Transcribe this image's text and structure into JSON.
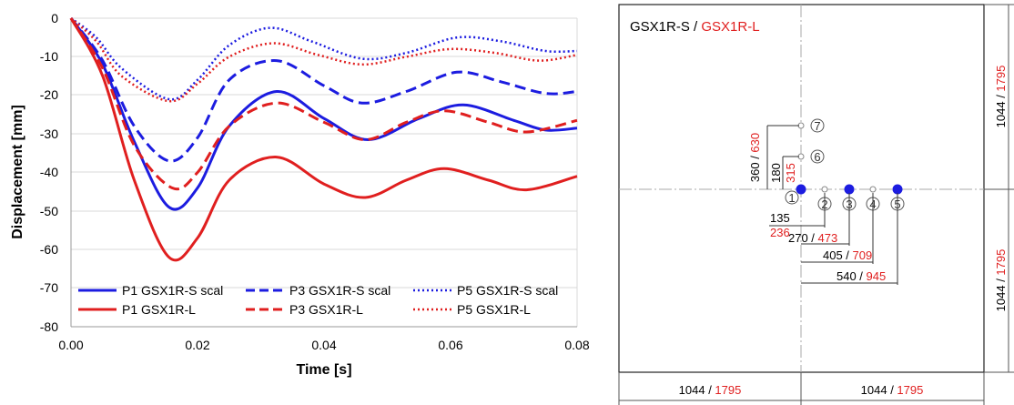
{
  "colors": {
    "blue": "#1c1ce0",
    "red": "#e01f1f",
    "black": "#000000",
    "grid": "#d9d9d9"
  },
  "chart_data": {
    "type": "line",
    "xlabel": "Time [s]",
    "ylabel": "Displacement [mm]",
    "xlim": [
      0,
      0.08
    ],
    "ylim": [
      -80,
      0
    ],
    "xticks": [
      "0.00",
      "0.02",
      "0.04",
      "0.06",
      "0.08"
    ],
    "yticks": [
      "0",
      "-10",
      "-20",
      "-30",
      "-40",
      "-50",
      "-60",
      "-70",
      "-80"
    ],
    "grid": "horizontal",
    "legend_position": "bottom",
    "series": [
      {
        "name": "P1 GSX1R-S scal",
        "color": "#1c1ce0",
        "style": "solid",
        "x": [
          0,
          0.005,
          0.01,
          0.0155,
          0.02,
          0.025,
          0.0325,
          0.04,
          0.047,
          0.055,
          0.062,
          0.07,
          0.075,
          0.08
        ],
        "y": [
          0,
          -12,
          -32,
          -49,
          -44,
          -28,
          -19,
          -26,
          -31.5,
          -26,
          -22.5,
          -26.5,
          -29,
          -28.5
        ]
      },
      {
        "name": "P3 GSX1R-S scal",
        "color": "#1c1ce0",
        "style": "dashed",
        "x": [
          0,
          0.005,
          0.01,
          0.0155,
          0.02,
          0.025,
          0.0325,
          0.04,
          0.046,
          0.053,
          0.061,
          0.068,
          0.075,
          0.08
        ],
        "y": [
          0,
          -11,
          -28,
          -37,
          -31,
          -16,
          -11,
          -17.5,
          -22,
          -19,
          -14,
          -16.5,
          -19.5,
          -19
        ]
      },
      {
        "name": "P5 GSX1R-S scal",
        "color": "#1c1ce0",
        "style": "dotted",
        "x": [
          0,
          0.004,
          0.008,
          0.0155,
          0.02,
          0.025,
          0.0315,
          0.038,
          0.046,
          0.053,
          0.061,
          0.068,
          0.075,
          0.08
        ],
        "y": [
          0,
          -5,
          -13,
          -21,
          -16,
          -7,
          -2.5,
          -6,
          -10.5,
          -9,
          -5,
          -6,
          -8.5,
          -8.5
        ]
      },
      {
        "name": "P1 GSX1R-L",
        "color": "#e01f1f",
        "style": "solid",
        "x": [
          0,
          0.005,
          0.01,
          0.0155,
          0.02,
          0.025,
          0.0325,
          0.04,
          0.0465,
          0.053,
          0.059,
          0.066,
          0.072,
          0.08
        ],
        "y": [
          0,
          -15,
          -42,
          -62,
          -57,
          -42,
          -36,
          -43,
          -46.5,
          -42,
          -39,
          -42,
          -44.5,
          -41
        ]
      },
      {
        "name": "P3 GSX1R-L",
        "color": "#e01f1f",
        "style": "dashed",
        "x": [
          0,
          0.005,
          0.01,
          0.016,
          0.02,
          0.025,
          0.0325,
          0.04,
          0.0465,
          0.053,
          0.059,
          0.066,
          0.072,
          0.08
        ],
        "y": [
          0,
          -13,
          -33,
          -44,
          -40,
          -28,
          -22,
          -27,
          -31.5,
          -27,
          -24,
          -27,
          -29.5,
          -26.5
        ]
      },
      {
        "name": "P5 GSX1R-L",
        "color": "#e01f1f",
        "style": "dotted",
        "x": [
          0,
          0.004,
          0.008,
          0.0155,
          0.02,
          0.025,
          0.032,
          0.039,
          0.046,
          0.053,
          0.06,
          0.067,
          0.074,
          0.08
        ],
        "y": [
          0,
          -6,
          -15,
          -21.5,
          -17,
          -10,
          -6.5,
          -9.5,
          -12,
          -10,
          -8,
          -9,
          -11,
          -9.5
        ]
      }
    ]
  },
  "diagram": {
    "title_black": "GSX1R-S",
    "title_sep": " / ",
    "title_red": "GSX1R-L",
    "right_dim_top_black": "1044 / ",
    "right_dim_top_red": "1795",
    "right_dim_bot_black": "1044 / ",
    "right_dim_bot_red": "1795",
    "bottom_dim_left_black": "1044 / ",
    "bottom_dim_left_red": "1795",
    "bottom_dim_right_black": "1044 / ",
    "bottom_dim_right_red": "1795",
    "points": [
      "1",
      "2",
      "3",
      "4",
      "5",
      "6",
      "7"
    ],
    "dim_360": "360 / ",
    "dim_630": "630",
    "dim_180": "180",
    "dim_315": "315",
    "dim_135": "135",
    "dim_236": "236",
    "dim_270": "270 / ",
    "dim_473": "473",
    "dim_405": "405 / ",
    "dim_709": "709",
    "dim_540": "540 / ",
    "dim_945": "945"
  }
}
